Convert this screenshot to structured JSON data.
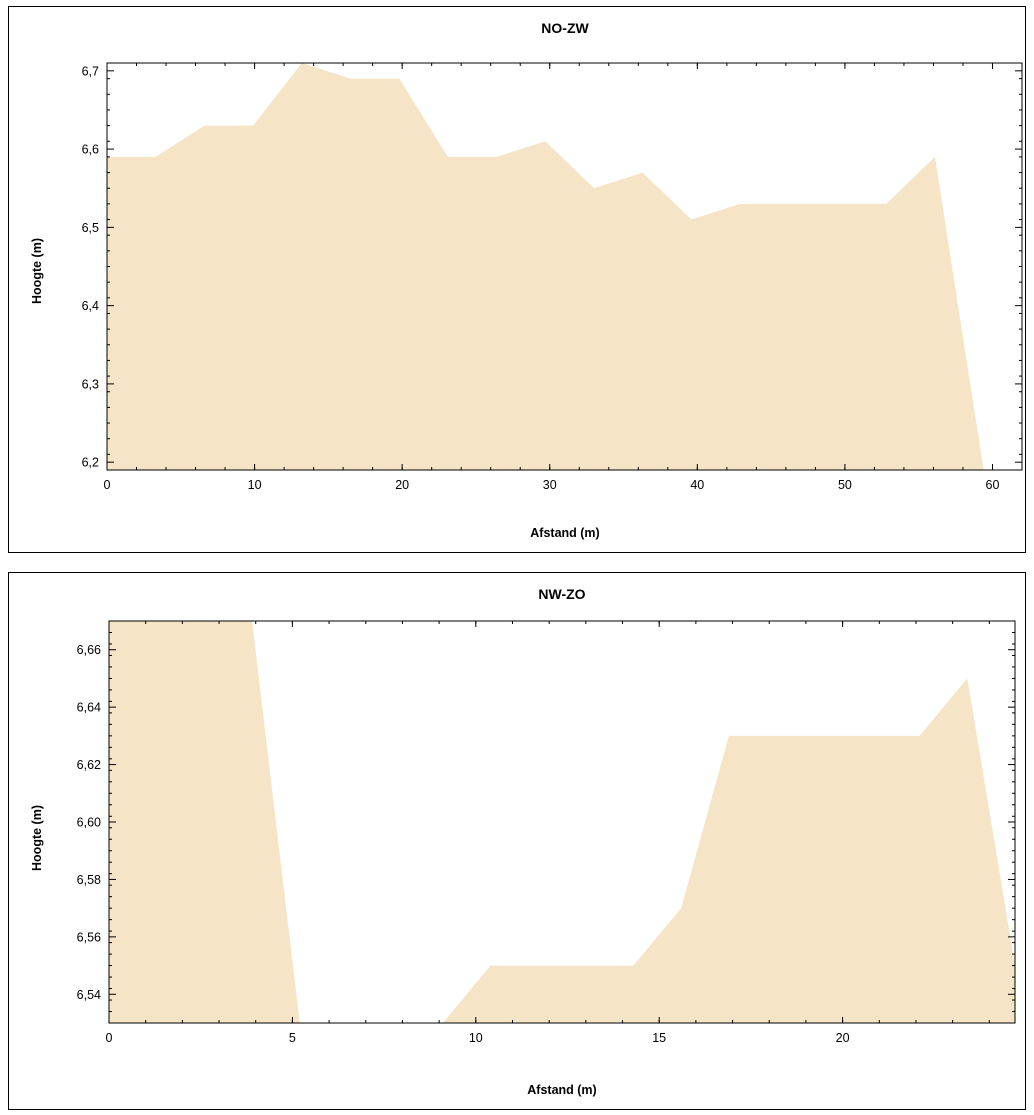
{
  "colors": {
    "area_fill": "#f5e4c6",
    "axis": "#000000",
    "background": "#ffffff"
  },
  "chart_data": [
    {
      "type": "area",
      "title": "NO-ZW",
      "xlabel": "Afstand (m)",
      "ylabel": "Hoogte (m)",
      "xlim": [
        0,
        62
      ],
      "ylim": [
        6.19,
        6.71
      ],
      "x_ticks": [
        0,
        10,
        20,
        30,
        40,
        50,
        60
      ],
      "x_tick_labels": [
        "0",
        "10",
        "20",
        "30",
        "40",
        "50",
        "60"
      ],
      "x_minor_step": 2,
      "y_ticks": [
        6.2,
        6.3,
        6.4,
        6.5,
        6.6,
        6.7
      ],
      "y_tick_labels": [
        "6,2",
        "6,3",
        "6,4",
        "6,5",
        "6,6",
        "6,7"
      ],
      "y_minor_step": 0.02,
      "grid": false,
      "series": [
        {
          "x": [
            0,
            3.3,
            6.6,
            9.9,
            13.2,
            16.5,
            19.8,
            23.1,
            26.4,
            29.7,
            33.0,
            36.3,
            39.6,
            42.9,
            46.2,
            49.5,
            52.8,
            56.1,
            59.4
          ],
          "y": [
            6.59,
            6.59,
            6.63,
            6.63,
            6.71,
            6.69,
            6.69,
            6.59,
            6.59,
            6.61,
            6.55,
            6.57,
            6.51,
            6.53,
            6.53,
            6.53,
            6.53,
            6.59,
            6.19
          ]
        }
      ]
    },
    {
      "type": "area",
      "title": "NW-ZO",
      "xlabel": "Afstand (m)",
      "ylabel": "Hoogte (m)",
      "xlim": [
        0,
        24.7
      ],
      "ylim": [
        6.53,
        6.67
      ],
      "x_ticks": [
        0,
        5,
        10,
        15,
        20
      ],
      "x_tick_labels": [
        "0",
        "5",
        "10",
        "15",
        "20"
      ],
      "x_minor_step": 1,
      "y_ticks": [
        6.54,
        6.56,
        6.58,
        6.6,
        6.62,
        6.64,
        6.66
      ],
      "y_tick_labels": [
        "6,54",
        "6,56",
        "6,58",
        "6,60",
        "6,62",
        "6,64",
        "6,66"
      ],
      "y_minor_step": 0.004,
      "grid": false,
      "series": [
        {
          "x": [
            0,
            1.3,
            2.6,
            3.9,
            5.2,
            6.5,
            7.8,
            9.1,
            10.4,
            11.7,
            13.0,
            14.3,
            15.6,
            16.9,
            18.2,
            19.5,
            20.8,
            22.1,
            23.4,
            24.7
          ],
          "y": [
            6.67,
            6.67,
            6.67,
            6.67,
            6.53,
            6.53,
            6.53,
            6.53,
            6.55,
            6.55,
            6.55,
            6.55,
            6.57,
            6.63,
            6.63,
            6.63,
            6.63,
            6.63,
            6.65,
            6.55
          ]
        }
      ]
    }
  ]
}
